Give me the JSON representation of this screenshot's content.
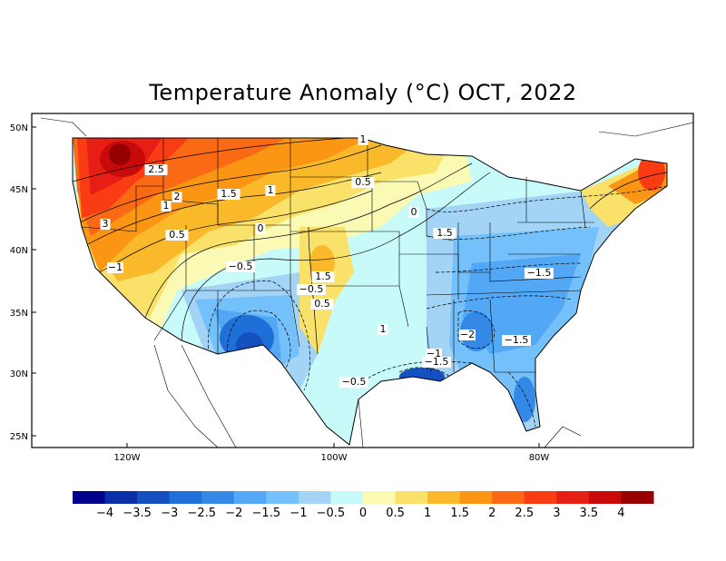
{
  "title": "Temperature Anomaly (°C) OCT, 2022",
  "lat_ticks": [
    "50N",
    "45N",
    "40N",
    "35N",
    "30N",
    "25N"
  ],
  "lon_ticks": [
    "120W",
    "100W",
    "80W"
  ],
  "contour_labels": [
    "1",
    "2.5",
    "0.5",
    "1.5",
    "1",
    "2",
    "1",
    "3",
    "0.5",
    "0",
    "-0.5",
    "-1",
    "1.5",
    "-0.5",
    "0.5",
    "1",
    "0",
    "-2",
    "-1.5",
    "-1",
    "-1.5",
    "-0.5",
    "1.5",
    "-1.5"
  ],
  "colorbar": {
    "colors": [
      "#00008b",
      "#0a2fa8",
      "#1450c0",
      "#1f6fd8",
      "#3489e6",
      "#52a8f5",
      "#74c0fa",
      "#a3d4f5",
      "#c8fafa",
      "#fafab4",
      "#fae169",
      "#fab92a",
      "#fa9614",
      "#fa6914",
      "#fa3c14",
      "#e61e14",
      "#c80a0a",
      "#960000"
    ],
    "labels": [
      "−4",
      "−3.5",
      "−3",
      "−2.5",
      "−2",
      "−1.5",
      "−1",
      "−0.5",
      "0",
      "0.5",
      "1",
      "1.5",
      "2",
      "2.5",
      "3",
      "3.5",
      "4"
    ]
  }
}
